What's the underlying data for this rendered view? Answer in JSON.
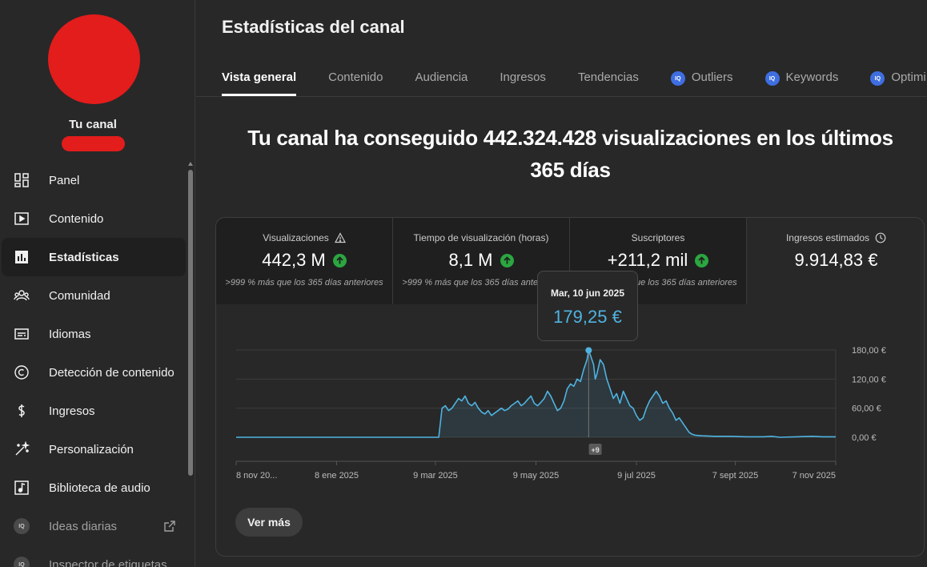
{
  "sidebar": {
    "channel_label": "Tu canal",
    "items": [
      {
        "label": "Panel",
        "icon": "dashboard-icon"
      },
      {
        "label": "Contenido",
        "icon": "content-icon"
      },
      {
        "label": "Estadísticas",
        "icon": "analytics-icon",
        "active": true
      },
      {
        "label": "Comunidad",
        "icon": "community-icon"
      },
      {
        "label": "Idiomas",
        "icon": "subtitles-icon"
      },
      {
        "label": "Detección de contenido",
        "icon": "copyright-icon"
      },
      {
        "label": "Ingresos",
        "icon": "dollar-icon"
      },
      {
        "label": "Personalización",
        "icon": "magic-wand-icon"
      },
      {
        "label": "Biblioteca de audio",
        "icon": "audio-library-icon"
      },
      {
        "label": "Ideas diarias",
        "icon": "iq-icon",
        "badge": "IQ"
      },
      {
        "label": "Inspector de etiquetas",
        "icon": "iq-icon",
        "badge": "IQ"
      }
    ]
  },
  "header": {
    "title": "Estadísticas del canal",
    "tabs": [
      {
        "label": "Vista general",
        "active": true
      },
      {
        "label": "Contenido"
      },
      {
        "label": "Audiencia"
      },
      {
        "label": "Ingresos"
      },
      {
        "label": "Tendencias"
      },
      {
        "label": "Outliers",
        "badge": "IQ"
      },
      {
        "label": "Keywords",
        "badge": "IQ"
      },
      {
        "label": "Optimi",
        "badge": "IQ"
      }
    ]
  },
  "headline": "Tu canal ha conseguido 442.324.428 visualizaciones en los últimos 365 días",
  "metrics": [
    {
      "title": "Visualizaciones",
      "value": "442,3 M",
      "delta": ">999 % más que los 365 días anteriores",
      "icon": "warning-icon",
      "trend": "up"
    },
    {
      "title": "Tiempo de visualización (horas)",
      "value": "8,1 M",
      "delta": ">999 % más que los 365 días anteriores",
      "trend": "up"
    },
    {
      "title": "Suscriptores",
      "value": "+211,2 mil",
      "delta": ">999 % más que los 365 días anteriores",
      "trend": "up"
    },
    {
      "title": "Ingresos estimados",
      "value": "9.914,83 €",
      "icon": "clock-icon"
    }
  ],
  "tooltip": {
    "date": "Mar, 10 jun 2025",
    "value": "179,25 €"
  },
  "chart_data": {
    "type": "line",
    "ylim": [
      0,
      180
    ],
    "y_ticks": [
      "180,00 €",
      "120,00 €",
      "60,00 €",
      "0,00 €"
    ],
    "y_tick_values": [
      180,
      120,
      60,
      0
    ],
    "x_tick_labels": [
      "8 nov 20...",
      "8 ene 2025",
      "9 mar 2025",
      "9 may 2025",
      "9 jul 2025",
      "7 sept 2025",
      "7 nov 2025"
    ],
    "x_tick_days": [
      0,
      61,
      121,
      182,
      243,
      303,
      364
    ],
    "marker_label": "+9",
    "marker_day": 218,
    "highlight": {
      "day": 214,
      "value": 179.25
    },
    "series": [
      {
        "color": "#4fb3e1",
        "points": [
          [
            0,
            0
          ],
          [
            60,
            0
          ],
          [
            100,
            0
          ],
          [
            123,
            0
          ],
          [
            125,
            60
          ],
          [
            127,
            65
          ],
          [
            129,
            55
          ],
          [
            131,
            60
          ],
          [
            133,
            70
          ],
          [
            135,
            80
          ],
          [
            137,
            75
          ],
          [
            139,
            85
          ],
          [
            141,
            70
          ],
          [
            143,
            65
          ],
          [
            145,
            72
          ],
          [
            147,
            60
          ],
          [
            149,
            52
          ],
          [
            151,
            48
          ],
          [
            153,
            55
          ],
          [
            155,
            45
          ],
          [
            157,
            50
          ],
          [
            159,
            55
          ],
          [
            161,
            60
          ],
          [
            163,
            55
          ],
          [
            165,
            58
          ],
          [
            167,
            65
          ],
          [
            169,
            70
          ],
          [
            171,
            75
          ],
          [
            173,
            65
          ],
          [
            175,
            70
          ],
          [
            177,
            78
          ],
          [
            179,
            85
          ],
          [
            181,
            70
          ],
          [
            183,
            65
          ],
          [
            185,
            72
          ],
          [
            187,
            80
          ],
          [
            189,
            95
          ],
          [
            191,
            85
          ],
          [
            193,
            70
          ],
          [
            195,
            55
          ],
          [
            197,
            60
          ],
          [
            199,
            75
          ],
          [
            201,
            100
          ],
          [
            203,
            110
          ],
          [
            205,
            105
          ],
          [
            207,
            120
          ],
          [
            209,
            115
          ],
          [
            211,
            140
          ],
          [
            213,
            160
          ],
          [
            214,
            179
          ],
          [
            215,
            170
          ],
          [
            217,
            150
          ],
          [
            218,
            120
          ],
          [
            219,
            130
          ],
          [
            221,
            160
          ],
          [
            223,
            150
          ],
          [
            225,
            120
          ],
          [
            227,
            100
          ],
          [
            229,
            80
          ],
          [
            231,
            90
          ],
          [
            233,
            70
          ],
          [
            235,
            95
          ],
          [
            237,
            80
          ],
          [
            239,
            65
          ],
          [
            241,
            60
          ],
          [
            243,
            45
          ],
          [
            245,
            35
          ],
          [
            247,
            40
          ],
          [
            249,
            60
          ],
          [
            251,
            75
          ],
          [
            253,
            85
          ],
          [
            255,
            95
          ],
          [
            257,
            85
          ],
          [
            259,
            70
          ],
          [
            261,
            75
          ],
          [
            263,
            60
          ],
          [
            265,
            50
          ],
          [
            267,
            35
          ],
          [
            269,
            40
          ],
          [
            271,
            30
          ],
          [
            273,
            20
          ],
          [
            275,
            10
          ],
          [
            277,
            6
          ],
          [
            279,
            4
          ],
          [
            283,
            3
          ],
          [
            290,
            2
          ],
          [
            300,
            2
          ],
          [
            310,
            1
          ],
          [
            320,
            1
          ],
          [
            325,
            2
          ],
          [
            330,
            0
          ],
          [
            340,
            1
          ],
          [
            350,
            2
          ],
          [
            356,
            1
          ],
          [
            364,
            1
          ]
        ]
      }
    ]
  },
  "buttons": {
    "more": "Ver más"
  }
}
